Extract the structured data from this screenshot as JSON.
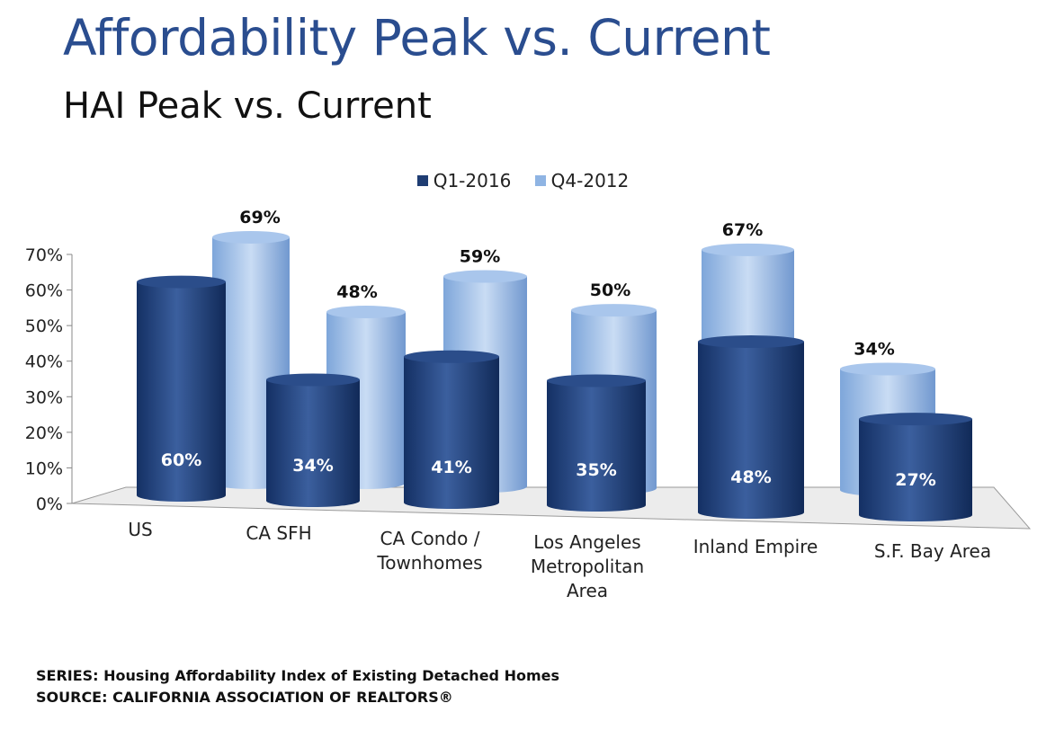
{
  "title": "Affordability Peak vs. Current",
  "subtitle": "HAI Peak vs. Current",
  "footer": {
    "series": "SERIES: Housing Affordability Index of Existing Detached Homes",
    "source": "SOURCE:  CALIFORNIA ASSOCIATION OF REALTORS®"
  },
  "chart_data": {
    "type": "bar",
    "style": "3d-cylinder",
    "categories": [
      "US",
      "CA SFH",
      "CA Condo / Townhomes",
      "Los Angeles Metropolitan Area",
      "Inland Empire",
      "S.F. Bay Area"
    ],
    "category_lines": [
      [
        "US"
      ],
      [
        "CA SFH"
      ],
      [
        "CA Condo /",
        "Townhomes"
      ],
      [
        "Los Angeles",
        "Metropolitan",
        "Area"
      ],
      [
        "Inland Empire"
      ],
      [
        "S.F. Bay Area"
      ]
    ],
    "series": [
      {
        "name": "Q1-2016",
        "values": [
          60,
          34,
          41,
          35,
          48,
          27
        ],
        "labels": [
          "60%",
          "34%",
          "41%",
          "35%",
          "48%",
          "27%"
        ],
        "color": "#1f3d73"
      },
      {
        "name": "Q4-2012",
        "values": [
          69,
          48,
          59,
          50,
          67,
          34
        ],
        "labels": [
          "69%",
          "48%",
          "59%",
          "50%",
          "67%",
          "34%"
        ],
        "color": "#8fb4e3"
      }
    ],
    "yticks": [
      "0%",
      "10%",
      "20%",
      "30%",
      "40%",
      "50%",
      "60%",
      "70%"
    ],
    "ylim": [
      0,
      70
    ],
    "legend_position": "top",
    "grid": false
  }
}
